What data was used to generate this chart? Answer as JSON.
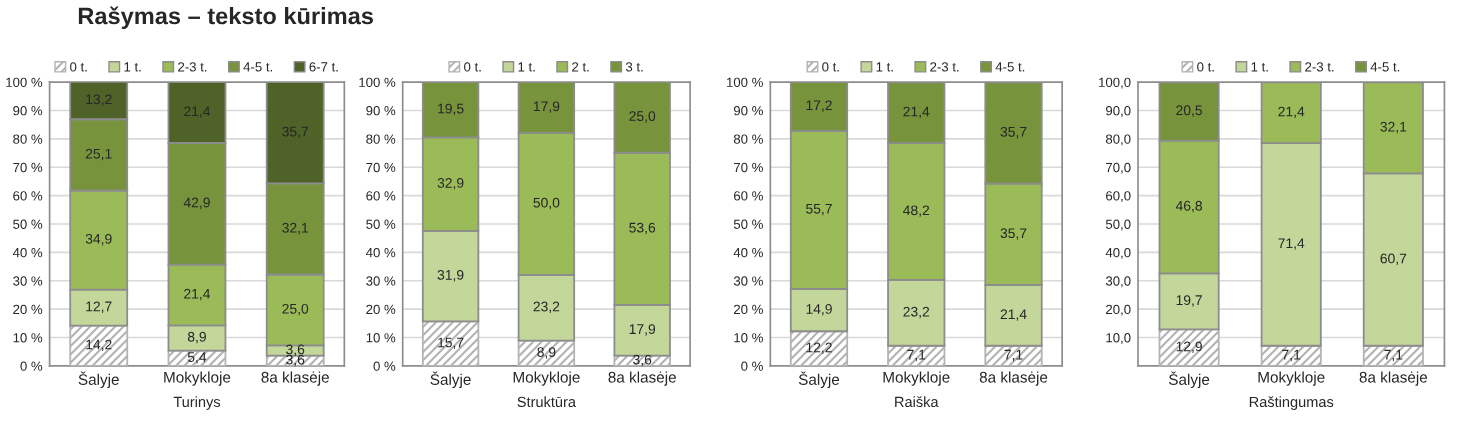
{
  "chart_data": [
    {
      "type": "bar",
      "stacked": true,
      "title": "Rašymas – teksto kūrimas",
      "xlabel": "Turinys",
      "categories": [
        "Šalyje",
        "Mokykloje",
        "8a klasėje"
      ],
      "ylim": [
        0,
        100
      ],
      "yticks": [
        {
          "value": 0,
          "label": "0 %"
        },
        {
          "value": 10,
          "label": "10 %"
        },
        {
          "value": 20,
          "label": "20 %"
        },
        {
          "value": 30,
          "label": "30 %"
        },
        {
          "value": 40,
          "label": "40 %"
        },
        {
          "value": 50,
          "label": "50 %"
        },
        {
          "value": 60,
          "label": "60 %"
        },
        {
          "value": 70,
          "label": "70 %"
        },
        {
          "value": 80,
          "label": "80 %"
        },
        {
          "value": 90,
          "label": "90 %"
        },
        {
          "value": 100,
          "label": "100 %"
        }
      ],
      "grid": "y",
      "legend": "top",
      "series": [
        {
          "name": "0 t.",
          "color": "#b3b3b3",
          "values": [
            14.2,
            5.4,
            3.6
          ],
          "value_labels": [
            "14,2",
            "5,4",
            "3,6"
          ]
        },
        {
          "name": "1 t.",
          "color": "#c4d79b",
          "values": [
            12.7,
            8.9,
            3.6
          ],
          "value_labels": [
            "12,7",
            "8,9",
            "3,6"
          ]
        },
        {
          "name": "2-3 t.",
          "color": "#9bbb59",
          "values": [
            34.9,
            21.4,
            25.0
          ],
          "value_labels": [
            "34,9",
            "21,4",
            "25,0"
          ]
        },
        {
          "name": "4-5 t.",
          "color": "#77933c",
          "values": [
            25.1,
            42.9,
            32.1
          ],
          "value_labels": [
            "25,1",
            "42,9",
            "32,1"
          ]
        },
        {
          "name": "6-7 t.",
          "color": "#4f6228",
          "values": [
            13.2,
            21.4,
            35.7
          ],
          "value_labels": [
            "13,2",
            "21,4",
            "35,7"
          ]
        }
      ]
    },
    {
      "type": "bar",
      "stacked": true,
      "xlabel": "Struktūra",
      "categories": [
        "Šalyje",
        "Mokykloje",
        "8a klasėje"
      ],
      "ylim": [
        0,
        100
      ],
      "yticks": [
        {
          "value": 0,
          "label": "0 %"
        },
        {
          "value": 10,
          "label": "10 %"
        },
        {
          "value": 20,
          "label": "20 %"
        },
        {
          "value": 30,
          "label": "30 %"
        },
        {
          "value": 40,
          "label": "40 %"
        },
        {
          "value": 50,
          "label": "50 %"
        },
        {
          "value": 60,
          "label": "60 %"
        },
        {
          "value": 70,
          "label": "70 %"
        },
        {
          "value": 80,
          "label": "80 %"
        },
        {
          "value": 90,
          "label": "90 %"
        },
        {
          "value": 100,
          "label": "100 %"
        }
      ],
      "grid": "y",
      "legend": "top",
      "series": [
        {
          "name": "0 t.",
          "color": "#b3b3b3",
          "values": [
            15.7,
            8.9,
            3.6
          ],
          "value_labels": [
            "15,7",
            "8,9",
            "3,6"
          ]
        },
        {
          "name": "1 t.",
          "color": "#c4d79b",
          "values": [
            31.9,
            23.2,
            17.9
          ],
          "value_labels": [
            "31,9",
            "23,2",
            "17,9"
          ]
        },
        {
          "name": "2 t.",
          "color": "#9bbb59",
          "values": [
            32.9,
            50.0,
            53.6
          ],
          "value_labels": [
            "32,9",
            "50,0",
            "53,6"
          ]
        },
        {
          "name": "3 t.",
          "color": "#77933c",
          "values": [
            19.5,
            17.9,
            25.0
          ],
          "value_labels": [
            "19,5",
            "17,9",
            "25,0"
          ]
        }
      ]
    },
    {
      "type": "bar",
      "stacked": true,
      "xlabel": "Raiška",
      "categories": [
        "Šalyje",
        "Mokykloje",
        "8a klasėje"
      ],
      "ylim": [
        0,
        100
      ],
      "yticks": [
        {
          "value": 0,
          "label": "0 %"
        },
        {
          "value": 10,
          "label": "10 %"
        },
        {
          "value": 20,
          "label": "20 %"
        },
        {
          "value": 30,
          "label": "30 %"
        },
        {
          "value": 40,
          "label": "40 %"
        },
        {
          "value": 50,
          "label": "50 %"
        },
        {
          "value": 60,
          "label": "60 %"
        },
        {
          "value": 70,
          "label": "70 %"
        },
        {
          "value": 80,
          "label": "80 %"
        },
        {
          "value": 90,
          "label": "90 %"
        },
        {
          "value": 100,
          "label": "100 %"
        }
      ],
      "grid": "y",
      "legend": "top",
      "series": [
        {
          "name": "0 t.",
          "color": "#b3b3b3",
          "values": [
            12.2,
            7.1,
            7.1
          ],
          "value_labels": [
            "12,2",
            "7,1",
            "7,1"
          ]
        },
        {
          "name": "1 t.",
          "color": "#c4d79b",
          "values": [
            14.9,
            23.2,
            21.4
          ],
          "value_labels": [
            "14,9",
            "23,2",
            "21,4"
          ]
        },
        {
          "name": "2-3 t.",
          "color": "#9bbb59",
          "values": [
            55.7,
            48.2,
            35.7
          ],
          "value_labels": [
            "55,7",
            "48,2",
            "35,7"
          ]
        },
        {
          "name": "4-5 t.",
          "color": "#77933c",
          "values": [
            17.2,
            21.4,
            35.7
          ],
          "value_labels": [
            "17,2",
            "21,4",
            "35,7"
          ]
        }
      ]
    },
    {
      "type": "bar",
      "stacked": true,
      "xlabel": "Raštingumas",
      "categories": [
        "Šalyje",
        "Mokykloje",
        "8a klasėje"
      ],
      "ylim": [
        0,
        100
      ],
      "yticks": [
        {
          "value": 0,
          "label": null
        },
        {
          "value": 10,
          "label": "10,0"
        },
        {
          "value": 20,
          "label": "20,0"
        },
        {
          "value": 30,
          "label": "30,0"
        },
        {
          "value": 40,
          "label": "40,0"
        },
        {
          "value": 50,
          "label": "50,0"
        },
        {
          "value": 60,
          "label": "60,0"
        },
        {
          "value": 70,
          "label": "70,0"
        },
        {
          "value": 80,
          "label": "80,0"
        },
        {
          "value": 90,
          "label": "90,0"
        },
        {
          "value": 100,
          "label": "100,0"
        }
      ],
      "grid": "y",
      "legend": "top",
      "series": [
        {
          "name": "0 t.",
          "color": "#b3b3b3",
          "values": [
            12.9,
            7.1,
            7.1
          ],
          "value_labels": [
            "12,9",
            "7,1",
            "7,1"
          ]
        },
        {
          "name": "1 t.",
          "color": "#c4d79b",
          "values": [
            19.7,
            71.4,
            60.7
          ],
          "value_labels": [
            "19,7",
            "71,4",
            "60,7"
          ]
        },
        {
          "name": "2-3 t.",
          "color": "#9bbb59",
          "values": [
            46.8,
            21.4,
            32.1
          ],
          "value_labels": [
            "46,8",
            "21,4",
            "32,1"
          ]
        },
        {
          "name": "4-5 t.",
          "color": "#77933c",
          "values": [
            20.5,
            null,
            null
          ],
          "value_labels": [
            "20,5",
            null,
            null
          ]
        }
      ]
    }
  ]
}
